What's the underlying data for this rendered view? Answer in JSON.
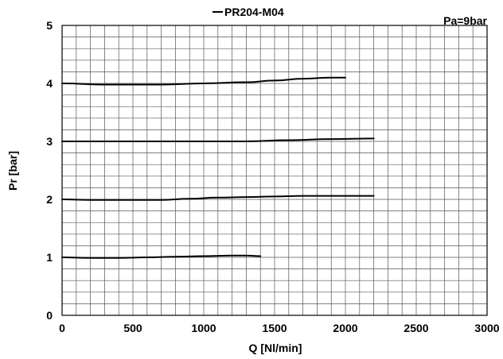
{
  "chart_data": {
    "type": "line",
    "title": "PR204-M04",
    "annotation": "Pa=9bar",
    "xlabel": "Q [Nl/min]",
    "ylabel": "Pr [bar]",
    "xlim": [
      0,
      3000
    ],
    "ylim": [
      0,
      5
    ],
    "xticks": [
      0,
      500,
      1000,
      1500,
      2000,
      2500,
      3000
    ],
    "yticks": [
      0,
      1,
      2,
      3,
      4,
      5
    ],
    "x_minor_step": 100,
    "y_minor_step": 0.2,
    "grid": true,
    "legend": "top-center",
    "series": [
      {
        "x": [
          0,
          200,
          400,
          600,
          800,
          1000,
          1200,
          1300,
          1400
        ],
        "y": [
          1.0,
          0.99,
          0.99,
          1.0,
          1.01,
          1.02,
          1.03,
          1.03,
          1.02
        ]
      },
      {
        "x": [
          0,
          200,
          400,
          700,
          900,
          1100,
          1300,
          1500,
          1700,
          1900,
          2100,
          2200
        ],
        "y": [
          2.0,
          1.99,
          1.99,
          1.99,
          2.01,
          2.03,
          2.04,
          2.05,
          2.06,
          2.06,
          2.06,
          2.06
        ]
      },
      {
        "x": [
          0,
          500,
          1000,
          1300,
          1600,
          1900,
          2200
        ],
        "y": [
          3.0,
          3.0,
          3.0,
          3.0,
          3.02,
          3.04,
          3.05
        ]
      },
      {
        "x": [
          0,
          300,
          700,
          1000,
          1300,
          1500,
          1700,
          1900,
          2000
        ],
        "y": [
          4.0,
          3.98,
          3.98,
          4.0,
          4.02,
          4.05,
          4.08,
          4.1,
          4.1
        ]
      }
    ]
  },
  "colors": {
    "line": "#000000",
    "grid": "#555555",
    "background": "#ffffff"
  }
}
